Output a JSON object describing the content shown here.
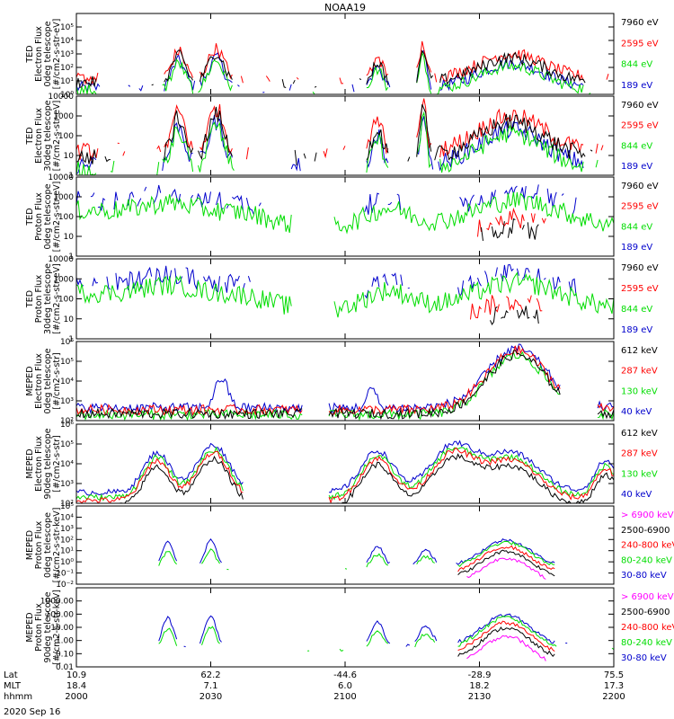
{
  "figure": {
    "title": "NOAA19",
    "date": "2020 Sep 16",
    "row_labels": [
      "Lat",
      "MLT",
      "hhmm"
    ],
    "time_columns": [
      {
        "lat": "10.9",
        "mlt": "18.4",
        "hhmm": "2000"
      },
      {
        "lat": "62.2",
        "mlt": "7.1",
        "hhmm": "2030"
      },
      {
        "lat": "-44.6",
        "mlt": "6.0",
        "hhmm": "2100"
      },
      {
        "lat": "-28.9",
        "mlt": "18.2",
        "hhmm": "2130"
      },
      {
        "lat": "75.5",
        "mlt": "17.3",
        "hhmm": "2200"
      }
    ]
  },
  "colors": {
    "black": "#000000",
    "red": "#ff0000",
    "green": "#00dd00",
    "blue": "#0000cc",
    "magenta": "#ff00ff"
  },
  "chart_data": [
    {
      "type": "line",
      "ylabel": [
        "TED",
        "Electron Flux",
        "0deg telescope",
        "[#/cm2-s-str-eV]"
      ],
      "log": true,
      "ylim": [
        1,
        1000000
      ],
      "yticks": [
        {
          "v": 1,
          "label": "10⁰"
        },
        {
          "v": 10,
          "label": "10¹"
        },
        {
          "v": 100,
          "label": "10²"
        },
        {
          "v": 1000,
          "label": "10³"
        },
        {
          "v": 10000,
          "label": "10⁴"
        },
        {
          "v": 100000,
          "label": "10⁵"
        }
      ],
      "series": [
        {
          "name": "7960 eV",
          "color": "black"
        },
        {
          "name": "2595 eV",
          "color": "red"
        },
        {
          "name": "844 eV",
          "color": "green"
        },
        {
          "name": "189 eV",
          "color": "blue"
        }
      ]
    },
    {
      "type": "line",
      "ylabel": [
        "TED",
        "Electron Flux",
        "30deg telescope",
        "[#/cm2-s-str-eV]"
      ],
      "log": true,
      "ylim": [
        1,
        10000
      ],
      "yticks": [
        {
          "v": 1,
          "label": "1"
        },
        {
          "v": 10,
          "label": "10"
        },
        {
          "v": 100,
          "label": "100"
        },
        {
          "v": 1000,
          "label": "1000"
        },
        {
          "v": 10000,
          "label": "10000"
        }
      ],
      "series": [
        {
          "name": "7960 eV",
          "color": "black"
        },
        {
          "name": "2595 eV",
          "color": "red"
        },
        {
          "name": "844 eV",
          "color": "green"
        },
        {
          "name": "189 eV",
          "color": "blue"
        }
      ]
    },
    {
      "type": "line",
      "ylabel": [
        "TED",
        "Proton Flux",
        "0deg telescope",
        "[#/cm2-s-str-eV]"
      ],
      "log": true,
      "ylim": [
        1,
        10000
      ],
      "yticks": [
        {
          "v": 1,
          "label": "1"
        },
        {
          "v": 10,
          "label": "10"
        },
        {
          "v": 100,
          "label": "100"
        },
        {
          "v": 1000,
          "label": "1000"
        },
        {
          "v": 10000,
          "label": "10000"
        }
      ],
      "series": [
        {
          "name": "7960 eV",
          "color": "black"
        },
        {
          "name": "2595 eV",
          "color": "red"
        },
        {
          "name": "844 eV",
          "color": "green"
        },
        {
          "name": "189 eV",
          "color": "blue"
        }
      ]
    },
    {
      "type": "line",
      "ylabel": [
        "TED",
        "Proton Flux",
        "30deg telescope",
        "[#/cm2-s-str-eV]"
      ],
      "log": true,
      "ylim": [
        1,
        10000
      ],
      "yticks": [
        {
          "v": 1,
          "label": "1"
        },
        {
          "v": 10,
          "label": "10"
        },
        {
          "v": 100,
          "label": "100"
        },
        {
          "v": 1000,
          "label": "1000"
        },
        {
          "v": 10000,
          "label": "10000"
        }
      ],
      "series": [
        {
          "name": "7960 eV",
          "color": "black"
        },
        {
          "name": "2595 eV",
          "color": "red"
        },
        {
          "name": "844 eV",
          "color": "green"
        },
        {
          "name": "189 eV",
          "color": "blue"
        }
      ]
    },
    {
      "type": "line",
      "ylabel": [
        "MEPED",
        "Electron Flux",
        "0deg telescope",
        "[#/cm2-s-str]"
      ],
      "log": true,
      "ylim": [
        100,
        1000000
      ],
      "yticks": [
        {
          "v": 100,
          "label": "10²"
        },
        {
          "v": 1000,
          "label": "10³"
        },
        {
          "v": 10000,
          "label": "10⁴"
        },
        {
          "v": 100000,
          "label": "10⁵"
        },
        {
          "v": 1000000,
          "label": "10⁶"
        }
      ],
      "series": [
        {
          "name": "612 keV",
          "color": "black"
        },
        {
          "name": "287 keV",
          "color": "red"
        },
        {
          "name": "130 keV",
          "color": "green"
        },
        {
          "name": "40 keV",
          "color": "blue"
        }
      ]
    },
    {
      "type": "line",
      "ylabel": [
        "MEPED",
        "Electron Flux",
        "90deg telescope",
        "[#/cm2-s-str]"
      ],
      "log": true,
      "ylim": [
        100,
        1000000
      ],
      "yticks": [
        {
          "v": 100,
          "label": "10²"
        },
        {
          "v": 1000,
          "label": "10³"
        },
        {
          "v": 10000,
          "label": "10⁴"
        },
        {
          "v": 100000,
          "label": "10⁵"
        },
        {
          "v": 1000000,
          "label": "10⁶"
        }
      ],
      "series": [
        {
          "name": "612 keV",
          "color": "black"
        },
        {
          "name": "287 keV",
          "color": "red"
        },
        {
          "name": "130 keV",
          "color": "green"
        },
        {
          "name": "40 keV",
          "color": "blue"
        }
      ]
    },
    {
      "type": "line",
      "ylabel": [
        "MEPED",
        "Proton Flux",
        "0deg telescope",
        "[#/cm2-s-str-keV]"
      ],
      "log": true,
      "ylim": [
        0.01,
        100000
      ],
      "yticks": [
        {
          "v": 0.01,
          "label": "10⁻²"
        },
        {
          "v": 0.1,
          "label": "10⁻¹"
        },
        {
          "v": 1,
          "label": "10⁰"
        },
        {
          "v": 10,
          "label": "10¹"
        },
        {
          "v": 100,
          "label": "10²"
        },
        {
          "v": 1000,
          "label": "10³"
        },
        {
          "v": 10000,
          "label": "10⁴"
        },
        {
          "v": 100000,
          "label": "10⁵"
        }
      ],
      "series": [
        {
          "name": "> 6900 keV",
          "color": "magenta"
        },
        {
          "name": "2500-6900",
          "color": "black"
        },
        {
          "name": "240-800 keV",
          "color": "red"
        },
        {
          "name": "80-240 keV",
          "color": "green"
        },
        {
          "name": "30-80 keV",
          "color": "blue"
        }
      ]
    },
    {
      "type": "line",
      "ylabel": [
        "MEPED",
        "Proton Flux",
        "90deg telescope",
        "[#/cm2-s-str-keV]"
      ],
      "log": true,
      "ylim": [
        0.01,
        10000
      ],
      "yticks": [
        {
          "v": 0.01,
          "label": "0.01"
        },
        {
          "v": 0.1,
          "label": "0.10"
        },
        {
          "v": 1,
          "label": "1.00"
        },
        {
          "v": 10,
          "label": "10.00"
        },
        {
          "v": 100,
          "label": "100.00"
        },
        {
          "v": 1000,
          "label": "1000.00"
        }
      ],
      "series": [
        {
          "name": "> 6900 keV",
          "color": "magenta"
        },
        {
          "name": "2500-6900",
          "color": "black"
        },
        {
          "name": "240-800 keV",
          "color": "red"
        },
        {
          "name": "80-240 keV",
          "color": "green"
        },
        {
          "name": "30-80 keV",
          "color": "blue"
        }
      ]
    }
  ]
}
